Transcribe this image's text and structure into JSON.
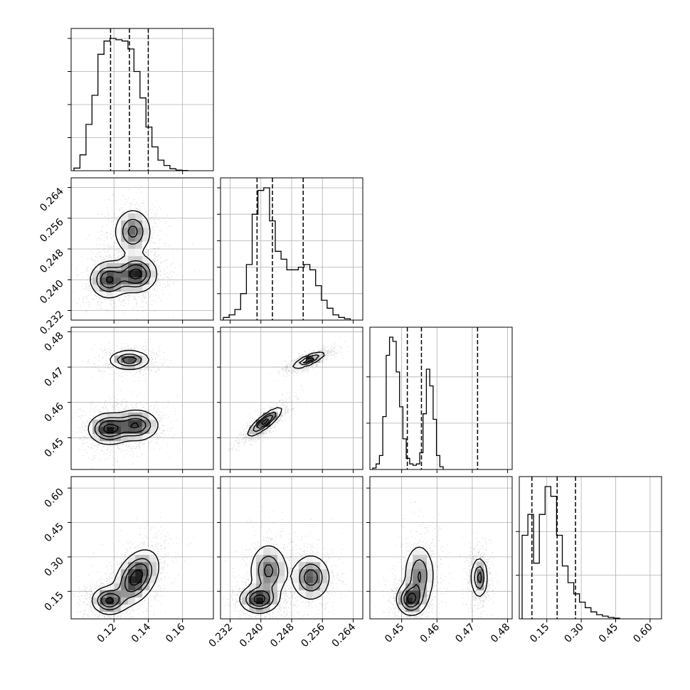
{
  "chart_data": {
    "type": "corner",
    "title": "",
    "parameters": [
      {
        "index": 0,
        "range": [
          0.095,
          0.178
        ],
        "ticks": [
          0.12,
          0.14,
          0.16
        ],
        "tick_labels": [
          "0.12",
          "0.14",
          "0.16"
        ],
        "quantiles": [
          0.118,
          0.129,
          0.14
        ],
        "hist_step": 0.0035,
        "hist": [
          2,
          12,
          35,
          57,
          88,
          98,
          100,
          99,
          98,
          92,
          75,
          55,
          33,
          18,
          8,
          4,
          1.5,
          0.5,
          0.2
        ]
      },
      {
        "index": 1,
        "range": [
          0.2295,
          0.2665
        ],
        "ticks": [
          0.232,
          0.24,
          0.248,
          0.256,
          0.264
        ],
        "tick_labels": [
          "0.232",
          "0.240",
          "0.248",
          "0.256",
          "0.264"
        ],
        "quantiles": [
          0.239,
          0.243,
          0.251
        ],
        "hist_step": 0.0015,
        "hist": [
          2,
          4,
          8,
          20,
          42,
          80,
          98,
          100,
          75,
          52,
          46,
          38,
          38,
          40,
          42,
          38,
          26,
          15,
          9,
          4,
          2,
          1
        ]
      },
      {
        "index": 2,
        "range": [
          0.441,
          0.4813
        ],
        "ticks": [
          0.45,
          0.46,
          0.47,
          0.48
        ],
        "tick_labels": [
          "0.45",
          "0.46",
          "0.47",
          "0.48"
        ],
        "quantiles": [
          0.4516,
          0.4556,
          0.4715
        ],
        "hist_step": 0.00095,
        "hist": [
          1,
          4,
          10,
          38,
          82,
          95,
          92,
          70,
          45,
          22,
          8,
          4,
          3,
          4,
          12,
          40,
          72,
          60,
          36,
          10,
          2
        ]
      },
      {
        "index": 3,
        "range": [
          0.03,
          0.65
        ],
        "ticks": [
          0.15,
          0.3,
          0.45,
          0.6
        ],
        "tick_labels": [
          "0.15",
          "0.30",
          "0.45",
          "0.60"
        ],
        "quantiles": [
          0.085,
          0.195,
          0.275
        ],
        "hist_step": 0.025,
        "hist": [
          60,
          75,
          40,
          75,
          95,
          88,
          60,
          38,
          26,
          18,
          12,
          8,
          5,
          3,
          2,
          1,
          0.5
        ]
      }
    ],
    "histogram_ticks": [
      [
        0.25,
        0.5,
        0.75,
        1.0
      ],
      [
        0.2,
        0.4,
        0.6,
        0.8,
        1.0
      ],
      [
        0.35,
        0.7
      ],
      [
        0.33,
        0.66
      ]
    ],
    "pairs": [
      {
        "row": 1,
        "col": 0,
        "modes": [
          {
            "x": 0.117,
            "y": 0.24,
            "sx": 0.0055,
            "sy": 0.0024,
            "w": 0.9
          },
          {
            "x": 0.133,
            "y": 0.2415,
            "sx": 0.006,
            "sy": 0.0024,
            "w": 1.0
          },
          {
            "x": 0.131,
            "y": 0.2525,
            "sx": 0.0055,
            "sy": 0.003,
            "w": 0.7
          }
        ]
      },
      {
        "row": 2,
        "col": 0,
        "modes": [
          {
            "x": 0.117,
            "y": 0.4525,
            "sx": 0.006,
            "sy": 0.0022,
            "w": 1.0
          },
          {
            "x": 0.133,
            "y": 0.4535,
            "sx": 0.0065,
            "sy": 0.0022,
            "w": 0.9
          },
          {
            "x": 0.129,
            "y": 0.472,
            "sx": 0.006,
            "sy": 0.0014,
            "w": 0.8
          }
        ]
      },
      {
        "row": 2,
        "col": 1,
        "modes": [
          {
            "x": 0.241,
            "y": 0.4545,
            "sx": 0.0022,
            "sy": 0.002,
            "rho": 0.85,
            "w": 1.0
          },
          {
            "x": 0.2525,
            "y": 0.472,
            "sx": 0.0022,
            "sy": 0.0012,
            "rho": 0.8,
            "w": 0.8
          }
        ]
      },
      {
        "row": 3,
        "col": 0,
        "modes": [
          {
            "x": 0.117,
            "y": 0.11,
            "sx": 0.005,
            "sy": 0.03,
            "w": 0.9
          },
          {
            "x": 0.133,
            "y": 0.21,
            "sx": 0.0065,
            "sy": 0.06,
            "rho": 0.4,
            "w": 1.0
          }
        ]
      },
      {
        "row": 3,
        "col": 1,
        "modes": [
          {
            "x": 0.2395,
            "y": 0.115,
            "sx": 0.0025,
            "sy": 0.03,
            "w": 1.0
          },
          {
            "x": 0.242,
            "y": 0.24,
            "sx": 0.0025,
            "sy": 0.06,
            "w": 0.7
          },
          {
            "x": 0.253,
            "y": 0.21,
            "sx": 0.0025,
            "sy": 0.05,
            "w": 0.8
          }
        ]
      },
      {
        "row": 3,
        "col": 2,
        "modes": [
          {
            "x": 0.4525,
            "y": 0.115,
            "sx": 0.002,
            "sy": 0.035,
            "w": 1.0
          },
          {
            "x": 0.455,
            "y": 0.22,
            "sx": 0.0022,
            "sy": 0.07,
            "w": 0.7
          },
          {
            "x": 0.472,
            "y": 0.21,
            "sx": 0.0012,
            "sy": 0.045,
            "w": 0.8
          }
        ]
      }
    ],
    "contour_levels": [
      0.135,
      0.39,
      0.61,
      0.86
    ],
    "grid": true,
    "quantile_line_style": "dashed",
    "histogram_style": "step"
  }
}
